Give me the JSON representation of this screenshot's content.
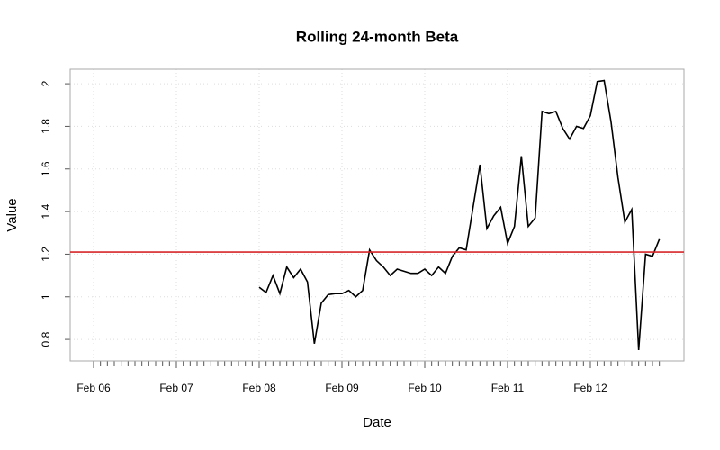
{
  "chart_data": {
    "type": "line",
    "title": "Rolling 24-month Beta",
    "x_label": "Date",
    "y_label": "Value",
    "categories": [
      "Feb 06",
      null,
      null,
      null,
      null,
      null,
      null,
      null,
      null,
      null,
      null,
      null,
      "Feb 07",
      null,
      null,
      null,
      null,
      null,
      null,
      null,
      null,
      null,
      null,
      null,
      "Feb 08",
      null,
      null,
      null,
      null,
      null,
      null,
      null,
      null,
      null,
      null,
      null,
      "Feb 09",
      null,
      null,
      null,
      null,
      null,
      null,
      null,
      null,
      null,
      null,
      null,
      "Feb 10",
      null,
      null,
      null,
      null,
      null,
      null,
      null,
      null,
      null,
      null,
      null,
      "Feb 11",
      null,
      null,
      null,
      null,
      null,
      null,
      null,
      null,
      null,
      null,
      null,
      "Feb 12",
      null,
      null,
      null,
      null,
      null,
      null,
      null,
      null,
      null,
      null
    ],
    "series": [
      {
        "name": "Beta",
        "color": "#000000",
        "values": [
          null,
          null,
          null,
          null,
          null,
          null,
          null,
          null,
          null,
          null,
          null,
          null,
          null,
          null,
          null,
          null,
          null,
          null,
          null,
          null,
          null,
          null,
          null,
          null,
          1.045,
          1.02,
          1.1,
          1.015,
          1.14,
          1.09,
          1.13,
          1.07,
          0.78,
          0.97,
          1.01,
          1.015,
          1.015,
          1.03,
          1.0,
          1.03,
          1.22,
          1.17,
          1.14,
          1.1,
          1.13,
          1.12,
          1.11,
          1.11,
          1.13,
          1.1,
          1.14,
          1.11,
          1.19,
          1.23,
          1.22,
          1.42,
          1.62,
          1.32,
          1.38,
          1.42,
          1.25,
          1.33,
          1.66,
          1.33,
          1.37,
          1.87,
          1.86,
          1.87,
          1.79,
          1.74,
          1.8,
          1.79,
          1.85,
          2.01,
          2.015,
          1.82,
          1.56,
          1.35,
          1.41,
          0.75,
          1.2,
          1.19,
          1.27
        ]
      }
    ],
    "hline": {
      "value": 1.21,
      "color": "#d62728"
    },
    "ylim": [
      0.699,
      2.068
    ],
    "yticks": [
      0.8,
      1.0,
      1.2,
      1.4,
      1.6,
      1.8,
      2.0
    ],
    "grid": true
  }
}
